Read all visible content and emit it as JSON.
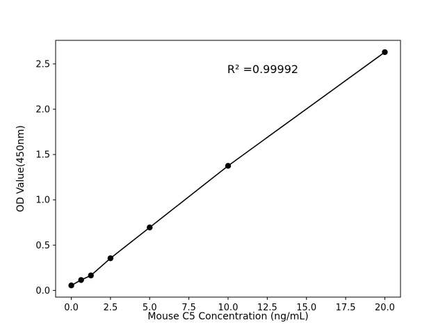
{
  "figure": {
    "background": "#ffffff"
  },
  "chart_data": {
    "type": "scatter",
    "title": "",
    "xlabel": "Mouse C5 Concentration (ng/mL)",
    "ylabel": "OD Value(450nm)",
    "x": [
      0,
      0.625,
      1.25,
      2.5,
      5,
      10,
      20
    ],
    "y": [
      0.055,
      0.115,
      0.165,
      0.355,
      0.695,
      1.375,
      2.63
    ],
    "fit_line": true,
    "marker": "circle",
    "point_color": "#000000",
    "line_color": "#000000",
    "grid": false,
    "legend": "none",
    "xlim": [
      -1,
      21
    ],
    "ylim": [
      -0.074,
      2.76
    ],
    "xticks": [
      {
        "v": 0.0,
        "label": "0.0"
      },
      {
        "v": 2.5,
        "label": "2.5"
      },
      {
        "v": 5.0,
        "label": "5.0"
      },
      {
        "v": 7.5,
        "label": "7.5"
      },
      {
        "v": 10.0,
        "label": "10.0"
      },
      {
        "v": 12.5,
        "label": "12.5"
      },
      {
        "v": 15.0,
        "label": "15.0"
      },
      {
        "v": 17.5,
        "label": "17.5"
      },
      {
        "v": 20.0,
        "label": "20.0"
      }
    ],
    "yticks": [
      {
        "v": 0.0,
        "label": "0.0"
      },
      {
        "v": 0.5,
        "label": "0.5"
      },
      {
        "v": 1.0,
        "label": "1.0"
      },
      {
        "v": 1.5,
        "label": "1.5"
      },
      {
        "v": 2.0,
        "label": "2.0"
      },
      {
        "v": 2.5,
        "label": "2.5"
      }
    ],
    "annotation": {
      "text": "R² =0.99992",
      "x": 9.95,
      "y": 2.4
    }
  }
}
